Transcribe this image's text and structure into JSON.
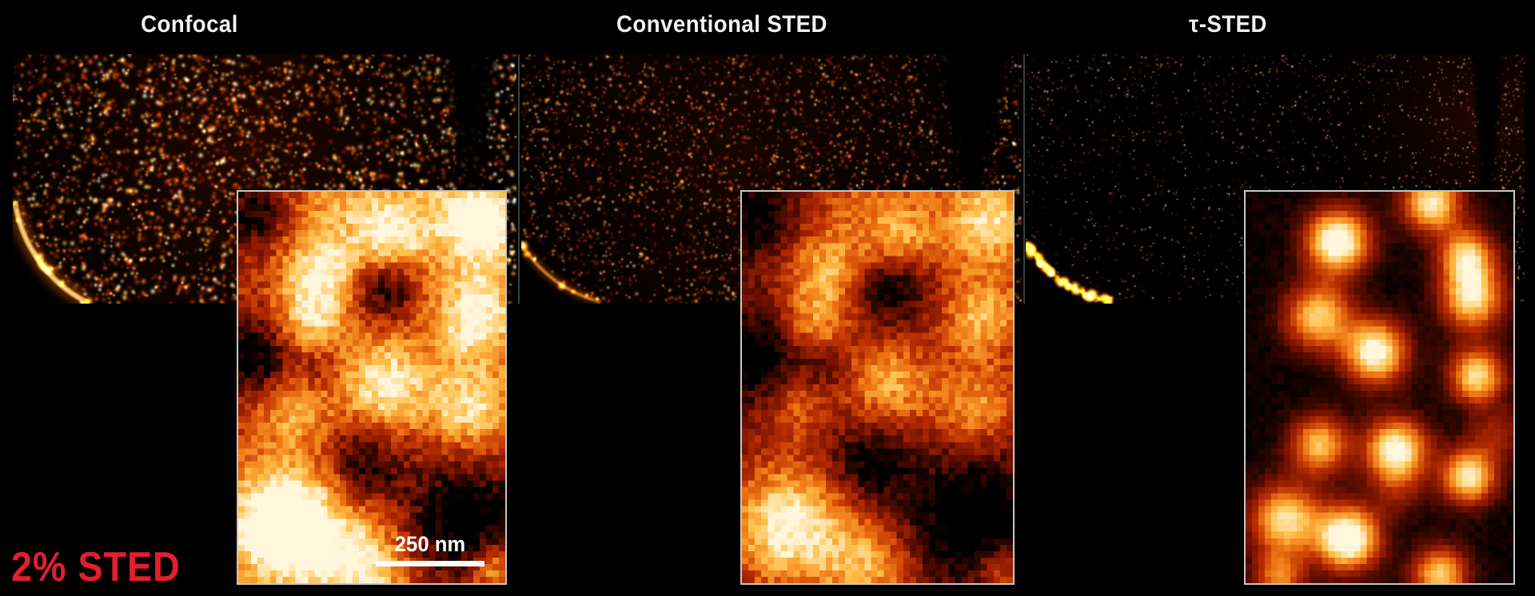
{
  "panels": [
    {
      "id": "confocal",
      "title": "Confocal"
    },
    {
      "id": "conventional-sted",
      "title": "Conventional STED"
    },
    {
      "id": "tau-sted",
      "title": "τ-STED"
    }
  ],
  "condition_label": "2% STED",
  "scale_bar_label": "250 nm",
  "colors": {
    "background": "#000000",
    "title_text": "#f2f2f2",
    "condition_label_red": "#e31e2d",
    "scale_bar_white": "#ffffff",
    "inset_border_gray": "#c6c6c6",
    "panel_divider": "#36423c",
    "colormap_hot": [
      "#000000",
      "#6b0f00",
      "#b72c00",
      "#ef7714",
      "#ffc14d",
      "#fff6dc"
    ]
  }
}
